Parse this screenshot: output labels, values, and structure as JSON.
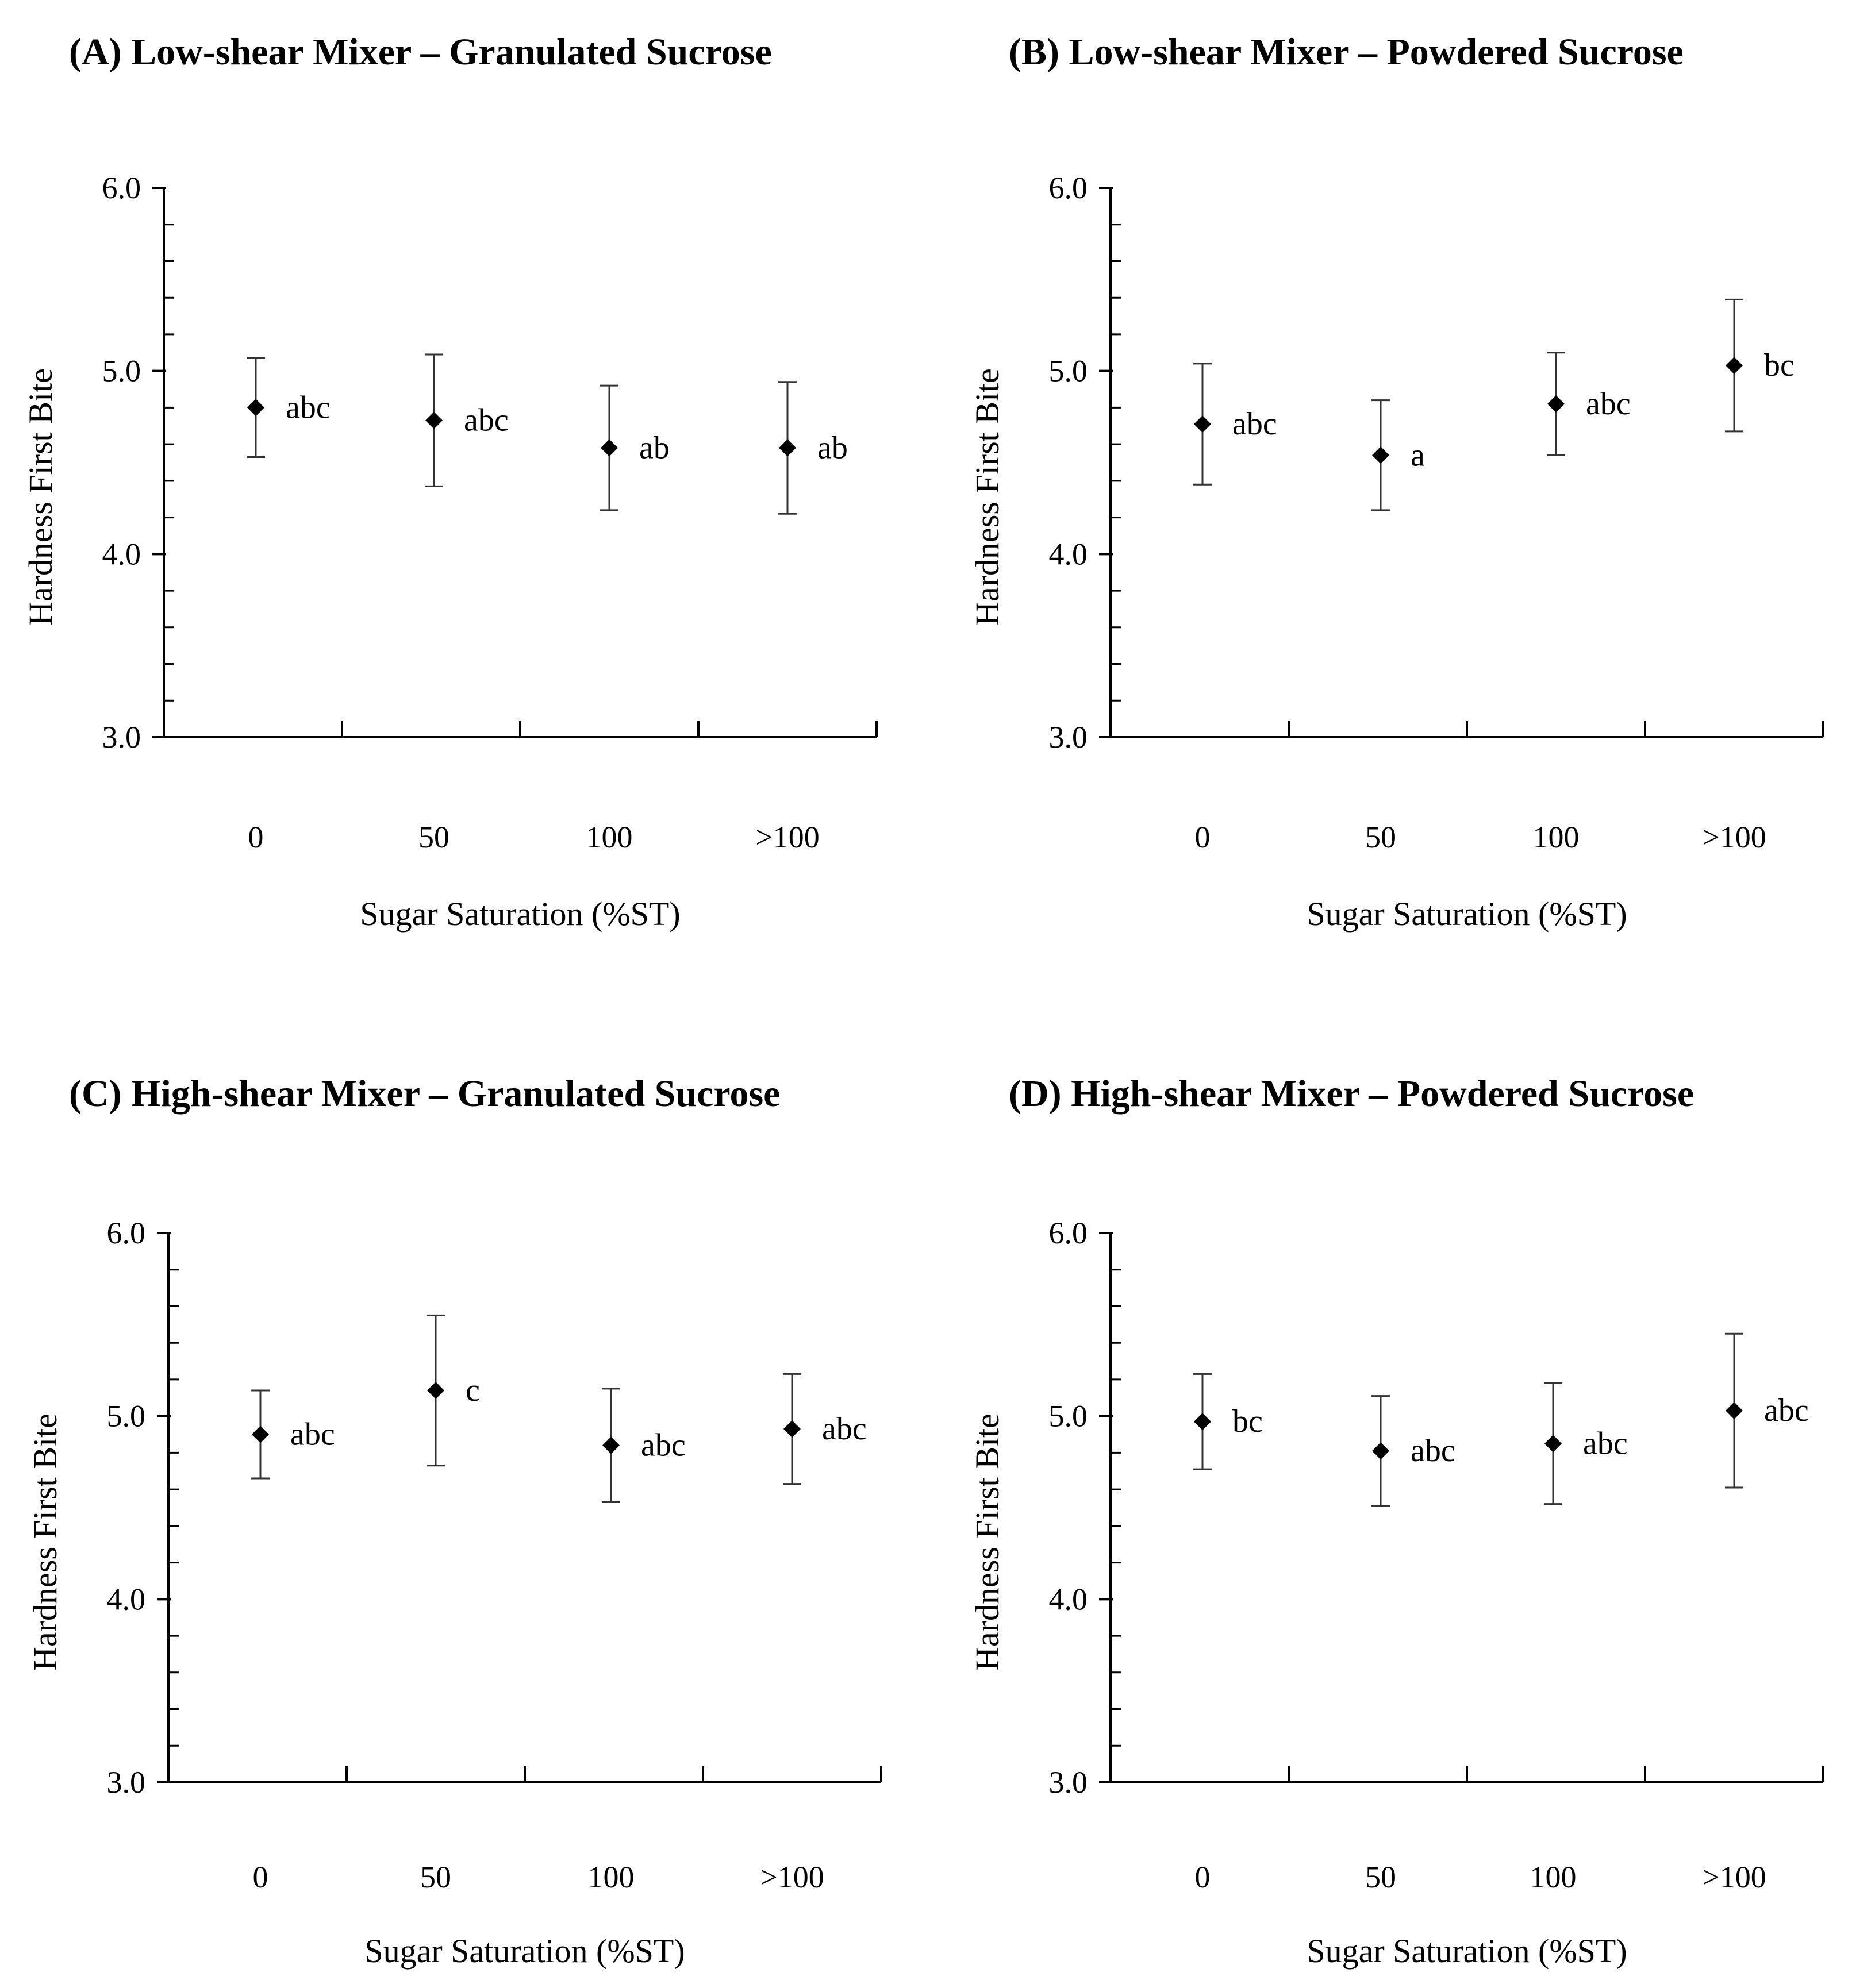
{
  "chart_data": [
    {
      "panel": "A",
      "type": "scatter",
      "title": "(A) Low-shear Mixer – Granulated Sucrose",
      "xlabel": "Sugar Saturation (%ST)",
      "ylabel": "Hardness First Bite",
      "categories": [
        "0",
        "50",
        "100",
        ">100"
      ],
      "values": [
        4.8,
        4.73,
        4.58,
        4.58
      ],
      "errors": [
        0.27,
        0.36,
        0.34,
        0.36
      ],
      "letters": [
        "abc",
        "abc",
        "ab",
        "ab"
      ],
      "ylim": [
        3.0,
        6.0
      ],
      "yticks": [
        "3.0",
        "4.0",
        "5.0",
        "6.0"
      ]
    },
    {
      "panel": "B",
      "type": "scatter",
      "title": "(B) Low-shear Mixer – Powdered Sucrose",
      "xlabel": "Sugar Saturation (%ST)",
      "ylabel": "Hardness First Bite",
      "categories": [
        "0",
        "50",
        "100",
        ">100"
      ],
      "values": [
        4.71,
        4.54,
        4.82,
        5.03
      ],
      "errors": [
        0.33,
        0.3,
        0.28,
        0.36
      ],
      "letters": [
        "abc",
        "a",
        "abc",
        "bc"
      ],
      "ylim": [
        3.0,
        6.0
      ],
      "yticks": [
        "3.0",
        "4.0",
        "5.0",
        "6.0"
      ]
    },
    {
      "panel": "C",
      "type": "scatter",
      "title": "(C) High-shear Mixer – Granulated Sucrose",
      "xlabel": "Sugar Saturation (%ST)",
      "ylabel": "Hardness First Bite",
      "categories": [
        "0",
        "50",
        "100",
        ">100"
      ],
      "values": [
        4.9,
        5.14,
        4.84,
        4.93
      ],
      "errors": [
        0.24,
        0.41,
        0.31,
        0.3
      ],
      "letters": [
        "abc",
        "c",
        "abc",
        "abc"
      ],
      "ylim": [
        3.0,
        6.0
      ],
      "yticks": [
        "3.0",
        "4.0",
        "5.0",
        "6.0"
      ]
    },
    {
      "panel": "D",
      "type": "scatter",
      "title": "(D) High-shear Mixer – Powdered Sucrose",
      "xlabel": "Sugar Saturation (%ST)",
      "ylabel": "Hardness First Bite",
      "categories": [
        "0",
        "50",
        "100",
        ">100"
      ],
      "values": [
        4.97,
        4.81,
        4.85,
        5.03
      ],
      "errors": [
        0.26,
        0.3,
        0.33,
        0.42
      ],
      "letters": [
        "bc",
        "abc",
        "abc",
        "abc"
      ],
      "ylim": [
        3.0,
        6.0
      ],
      "yticks": [
        "3.0",
        "4.0",
        "5.0",
        "6.0"
      ]
    }
  ]
}
